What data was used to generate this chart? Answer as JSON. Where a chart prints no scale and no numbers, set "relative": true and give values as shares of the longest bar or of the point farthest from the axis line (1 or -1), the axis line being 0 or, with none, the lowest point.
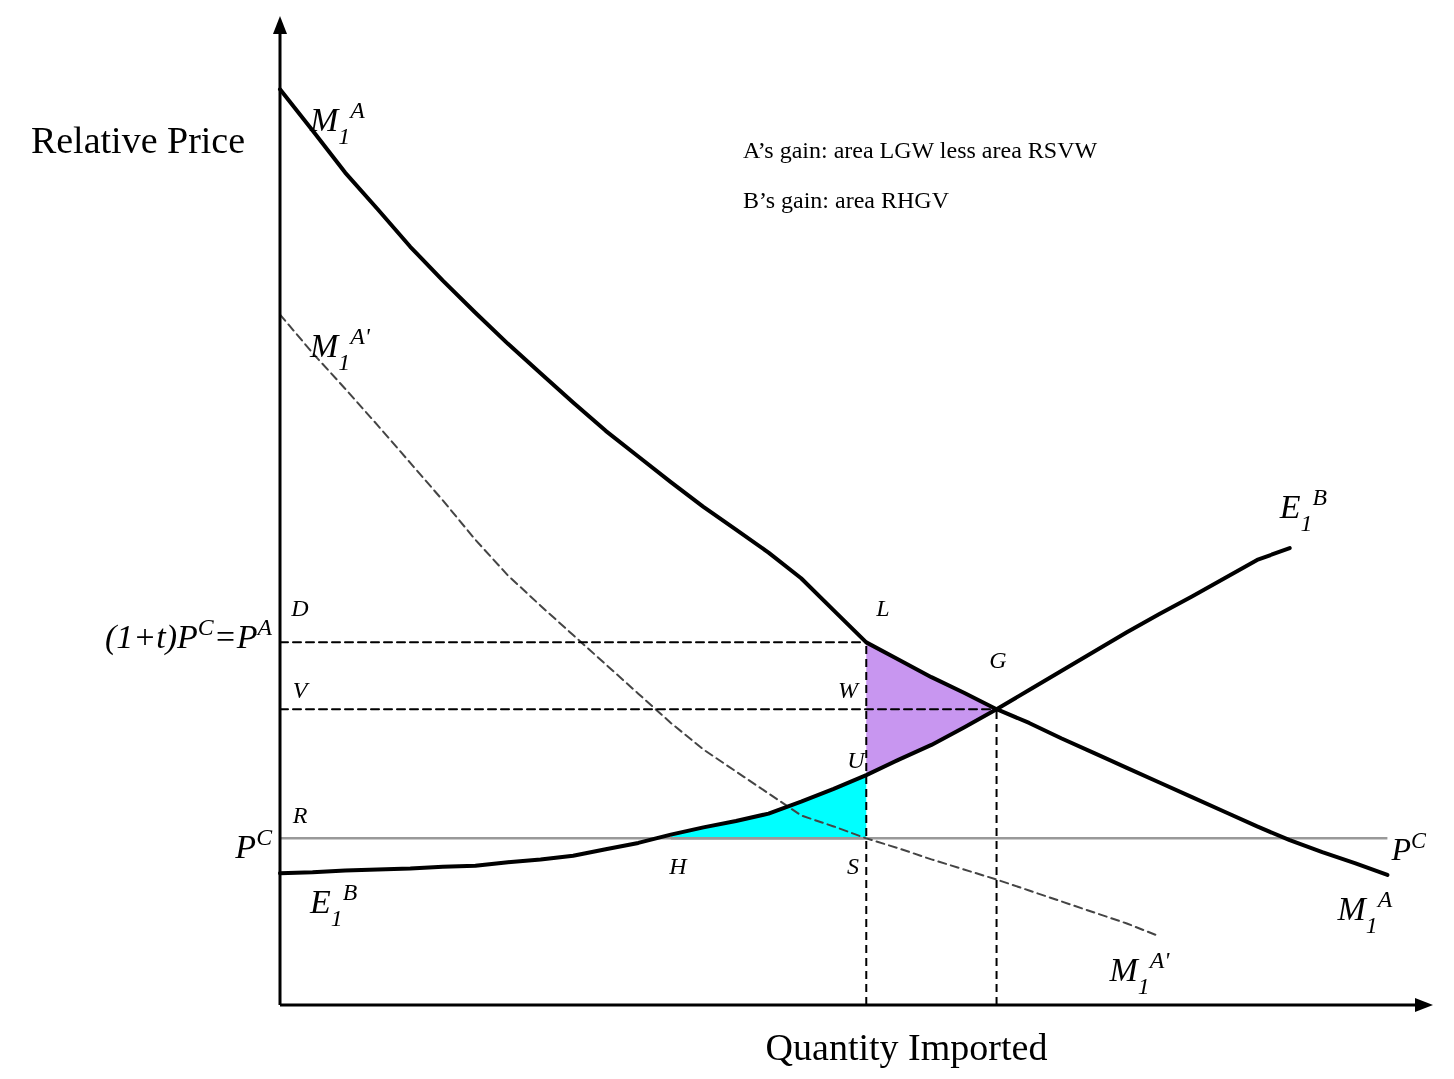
{
  "chart_data": {
    "type": "line",
    "relative": true,
    "xlabel": "Quantity Imported",
    "ylabel": "Relative Price",
    "categories": [
      null,
      null,
      null,
      null,
      null,
      null,
      null,
      null,
      null,
      null,
      null,
      null,
      null,
      null,
      null,
      null,
      null,
      null,
      null,
      null,
      null,
      null,
      null,
      null,
      null,
      null,
      null,
      null,
      null,
      null,
      null,
      null,
      null,
      null,
      null
    ],
    "series": [
      {
        "type": "area",
        "color": "#c896f0",
        "values": [
          null,
          null,
          null,
          null,
          null,
          null,
          null,
          null,
          null,
          null,
          null,
          null,
          null,
          null,
          null,
          null,
          null,
          null,
          0.396,
          0.377,
          0.358,
          0.341,
          0.323,
          null,
          null,
          null,
          null,
          null,
          null,
          null,
          null,
          null,
          null,
          null,
          null
        ]
      },
      {
        "type": "area",
        "color": "#00ffff",
        "values": [
          null,
          null,
          null,
          null,
          null,
          null,
          null,
          null,
          null,
          null,
          null,
          null,
          0.186,
          0.194,
          0.201,
          0.209,
          0.222,
          0.236,
          0.251,
          null,
          null,
          null,
          null,
          null,
          null,
          null,
          null,
          null,
          null,
          null,
          null,
          null,
          null,
          null,
          null
        ]
      },
      {
        "name": "M$_{1}$$^{A}$",
        "color": "#000000",
        "line_style": "solid",
        "values": [
          1.0,
          0.955,
          0.909,
          0.869,
          0.828,
          0.791,
          0.756,
          0.722,
          0.69,
          0.658,
          0.627,
          0.599,
          0.571,
          0.544,
          0.519,
          0.494,
          0.466,
          0.431,
          0.396,
          0.377,
          0.358,
          0.341,
          0.323,
          0.308,
          0.291,
          0.275,
          0.259,
          0.243,
          0.227,
          0.211,
          0.195,
          0.18,
          0.167,
          0.155,
          0.142
        ]
      },
      {
        "name": "M$_{1}$$^{A'}$",
        "color": "#444444",
        "line_style": "dashed",
        "values": [
          0.754,
          0.712,
          0.673,
          0.633,
          0.592,
          0.551,
          0.508,
          0.469,
          0.436,
          0.404,
          0.372,
          0.34,
          0.308,
          0.279,
          0.255,
          0.231,
          0.207,
          0.195,
          0.182,
          0.171,
          0.159,
          0.148,
          0.137,
          0.125,
          0.113,
          0.101,
          0.089,
          0.075,
          null,
          null,
          null,
          null,
          null,
          null,
          null
        ]
      },
      {
        "name": "E$_{1}$$^{B}$",
        "color": "#000000",
        "line_style": "solid",
        "values": [
          0.144,
          0.145,
          0.147,
          0.148,
          0.149,
          0.151,
          0.152,
          0.156,
          0.159,
          0.163,
          0.17,
          0.177,
          0.186,
          0.194,
          0.201,
          0.209,
          0.222,
          0.236,
          0.251,
          0.268,
          0.284,
          0.303,
          0.323,
          0.344,
          0.365,
          0.386,
          0.407,
          0.427,
          0.446,
          0.466,
          0.486,
          0.499,
          null,
          null,
          null
        ]
      },
      {
        "color": "#000000",
        "line_style": "dashed",
        "values": [
          0.396,
          0.396,
          0.396,
          0.396,
          0.396,
          0.396,
          0.396,
          0.396,
          0.396,
          0.396,
          0.396,
          0.396,
          0.396,
          0.396,
          0.396,
          0.396,
          0.396,
          0.396,
          0.396,
          null,
          null,
          null,
          null,
          null,
          null,
          null,
          null,
          null,
          null,
          null,
          null,
          null,
          null,
          null,
          null
        ]
      },
      {
        "color": "#000000",
        "line_style": "dashed",
        "values": [
          0.323,
          0.323,
          0.323,
          0.323,
          0.323,
          0.323,
          0.323,
          0.323,
          0.323,
          0.323,
          0.323,
          0.323,
          0.323,
          0.323,
          0.323,
          0.323,
          0.323,
          0.323,
          0.323,
          0.323,
          0.323,
          0.323,
          0.323,
          null,
          null,
          null,
          null,
          null,
          null,
          null,
          null,
          null,
          null,
          null,
          null
        ]
      }
    ],
    "ref_lines": [
      {
        "axis": "y",
        "value": 0.182,
        "label": "P$^{C}$",
        "color": "#999999",
        "line_style": "solid"
      }
    ],
    "annotations": [
      "A’s gain: area LGW less area RSVW",
      "B’s gain: area RHGV",
      "(1+t)P$^{C}$=P$^{A}$",
      "D",
      "L",
      "G",
      "V",
      "W",
      "U",
      "R",
      "H",
      "S"
    ]
  }
}
